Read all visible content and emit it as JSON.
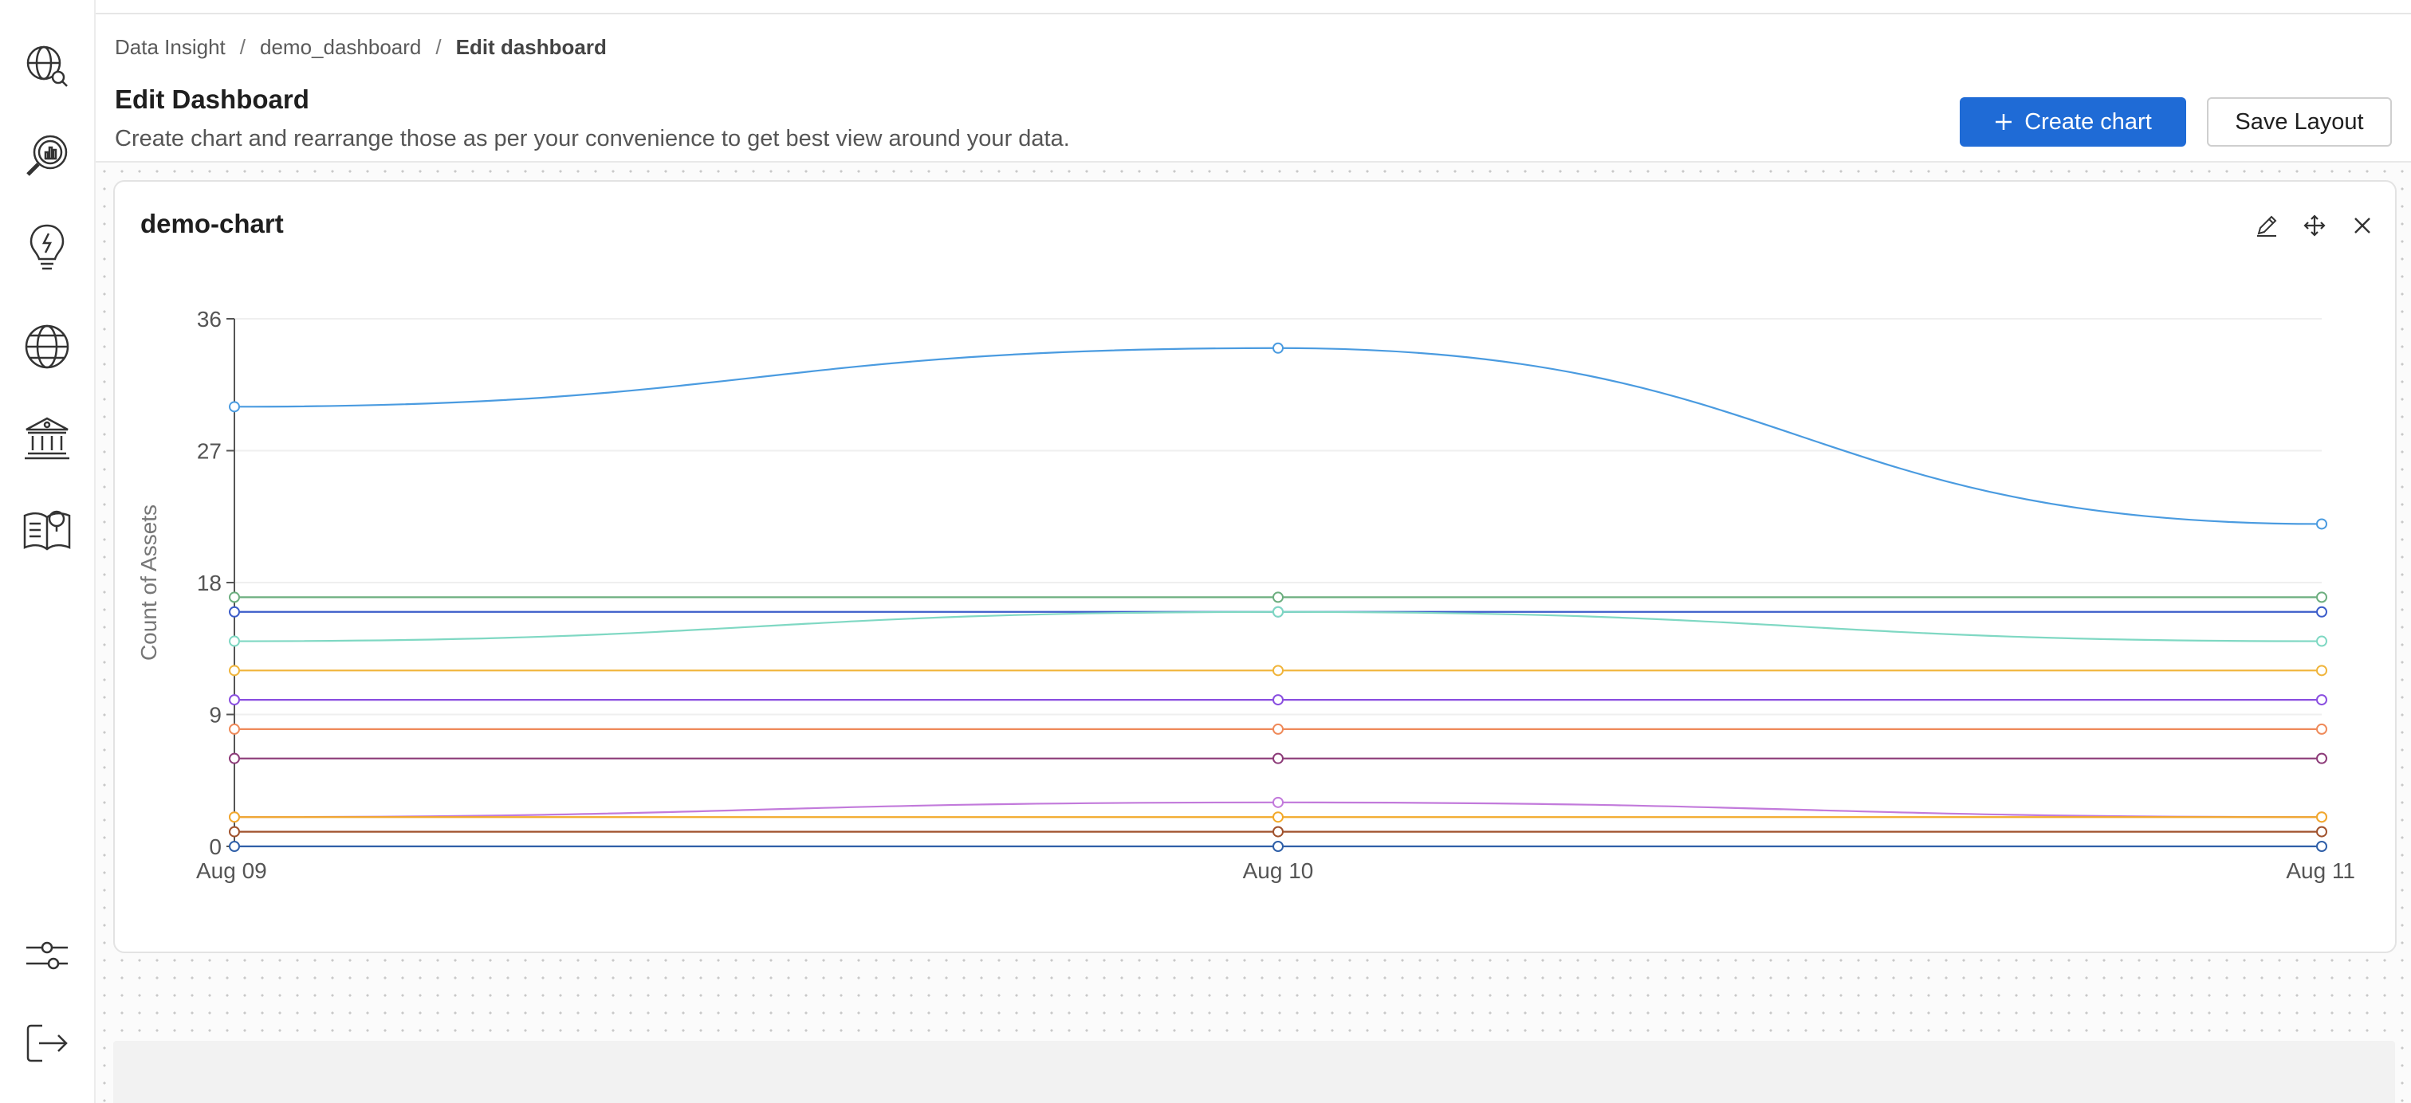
{
  "breadcrumb": {
    "items": [
      "Data Insight",
      "demo_dashboard",
      "Edit dashboard"
    ],
    "separator": "/"
  },
  "header": {
    "title": "Edit Dashboard",
    "subtitle": "Create chart and rearrange those as per your convenience to get best view around your data.",
    "create_button": "Create chart",
    "save_button": "Save Layout"
  },
  "sidebar": {
    "items": [
      {
        "icon": "globe-search-icon"
      },
      {
        "icon": "insights-magnifier-icon"
      },
      {
        "icon": "lightbulb-icon"
      },
      {
        "icon": "globe-icon"
      },
      {
        "icon": "governance-building-icon"
      },
      {
        "icon": "glossary-book-icon"
      }
    ],
    "bottom": [
      {
        "icon": "settings-sliders-icon"
      },
      {
        "icon": "logout-icon"
      }
    ]
  },
  "card": {
    "title": "demo-chart",
    "actions": [
      "edit-icon",
      "move-icon",
      "close-icon"
    ]
  },
  "colors": {
    "primary": "#1f6bd6"
  },
  "chart_data": {
    "type": "line",
    "ylabel": "Count of Assets",
    "xlabel": "",
    "categories": [
      "Aug 09",
      "Aug 10",
      "Aug 11"
    ],
    "y_ticks": [
      0,
      9,
      18,
      27,
      36
    ],
    "ylim": [
      0,
      36
    ],
    "grid": true,
    "series": [
      {
        "color": "#4a9be0",
        "values": [
          30,
          34,
          22
        ]
      },
      {
        "color": "#6cae7f",
        "values": [
          17,
          17,
          17
        ]
      },
      {
        "color": "#3b5cc9",
        "values": [
          16,
          16,
          16
        ]
      },
      {
        "color": "#7fd8c3",
        "values": [
          14,
          16,
          14
        ]
      },
      {
        "color": "#f0b43a",
        "values": [
          12,
          12,
          12
        ]
      },
      {
        "color": "#8a4fe0",
        "values": [
          10,
          10,
          10
        ]
      },
      {
        "color": "#ef8a5a",
        "values": [
          8,
          8,
          8
        ]
      },
      {
        "color": "#8c3a78",
        "values": [
          6,
          6,
          6
        ]
      },
      {
        "color": "#c27adb",
        "values": [
          2,
          3,
          2
        ]
      },
      {
        "color": "#f2a92a",
        "values": [
          2,
          2,
          2
        ]
      },
      {
        "color": "#a0522d",
        "values": [
          1,
          1,
          1
        ]
      },
      {
        "color": "#2f5fa8",
        "values": [
          0,
          0,
          0
        ]
      }
    ]
  }
}
